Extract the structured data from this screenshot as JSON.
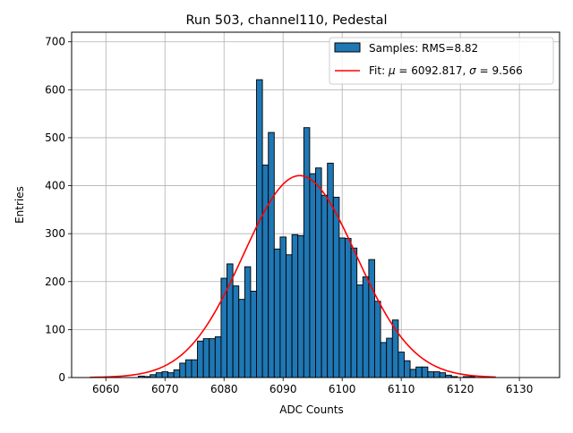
{
  "chart_data": {
    "type": "bar",
    "title": "Run 503, channel110, Pedestal",
    "xlabel": "ADC Counts",
    "ylabel": "Entries",
    "xlim": [
      6054.2,
      6136.8
    ],
    "ylim": [
      0,
      720
    ],
    "xticks": [
      6060,
      6070,
      6080,
      6090,
      6100,
      6110,
      6120,
      6130
    ],
    "yticks": [
      0,
      100,
      200,
      300,
      400,
      500,
      600,
      700
    ],
    "grid": true,
    "legend_position": "top-right",
    "bin_width": 1,
    "series": [
      {
        "name": "Samples: RMS=8.82",
        "kind": "histogram",
        "color": "#1f77b4",
        "edge_color": "#000000",
        "bins": [
          {
            "x": 6066,
            "v": 3
          },
          {
            "x": 6067,
            "v": 2
          },
          {
            "x": 6068,
            "v": 6
          },
          {
            "x": 6069,
            "v": 10
          },
          {
            "x": 6070,
            "v": 12
          },
          {
            "x": 6071,
            "v": 10
          },
          {
            "x": 6072,
            "v": 16
          },
          {
            "x": 6073,
            "v": 30
          },
          {
            "x": 6074,
            "v": 37
          },
          {
            "x": 6075,
            "v": 37
          },
          {
            "x": 6076,
            "v": 76
          },
          {
            "x": 6077,
            "v": 81
          },
          {
            "x": 6078,
            "v": 81
          },
          {
            "x": 6079,
            "v": 85
          },
          {
            "x": 6080,
            "v": 207
          },
          {
            "x": 6081,
            "v": 237
          },
          {
            "x": 6082,
            "v": 191
          },
          {
            "x": 6083,
            "v": 163
          },
          {
            "x": 6084,
            "v": 231
          },
          {
            "x": 6085,
            "v": 180
          },
          {
            "x": 6086,
            "v": 621
          },
          {
            "x": 6087,
            "v": 443
          },
          {
            "x": 6088,
            "v": 511
          },
          {
            "x": 6089,
            "v": 268
          },
          {
            "x": 6090,
            "v": 293
          },
          {
            "x": 6091,
            "v": 256
          },
          {
            "x": 6092,
            "v": 298
          },
          {
            "x": 6093,
            "v": 296
          },
          {
            "x": 6094,
            "v": 521
          },
          {
            "x": 6095,
            "v": 425
          },
          {
            "x": 6096,
            "v": 437
          },
          {
            "x": 6097,
            "v": 380
          },
          {
            "x": 6098,
            "v": 447
          },
          {
            "x": 6099,
            "v": 376
          },
          {
            "x": 6100,
            "v": 291
          },
          {
            "x": 6101,
            "v": 290
          },
          {
            "x": 6102,
            "v": 270
          },
          {
            "x": 6103,
            "v": 193
          },
          {
            "x": 6104,
            "v": 210
          },
          {
            "x": 6105,
            "v": 246
          },
          {
            "x": 6106,
            "v": 159
          },
          {
            "x": 6107,
            "v": 73
          },
          {
            "x": 6108,
            "v": 82
          },
          {
            "x": 6109,
            "v": 120
          },
          {
            "x": 6110,
            "v": 53
          },
          {
            "x": 6111,
            "v": 35
          },
          {
            "x": 6112,
            "v": 17
          },
          {
            "x": 6113,
            "v": 22
          },
          {
            "x": 6114,
            "v": 22
          },
          {
            "x": 6115,
            "v": 12
          },
          {
            "x": 6116,
            "v": 12
          },
          {
            "x": 6117,
            "v": 10
          },
          {
            "x": 6118,
            "v": 5
          },
          {
            "x": 6119,
            "v": 2
          },
          {
            "x": 6121,
            "v": 2
          },
          {
            "x": 6122,
            "v": 2
          }
        ]
      },
      {
        "name": "Fit: μ = 6092.817, σ = 9.566",
        "kind": "gaussian-fit",
        "color": "#ff0000",
        "mu": 6092.817,
        "sigma": 9.566,
        "amplitude": 421,
        "x_range": [
          6057.3,
          6126.0
        ]
      }
    ]
  },
  "legend": {
    "hist_label_prefix": "Samples: RMS=8.82",
    "fit_label_prefix": "Fit: ",
    "fit_mu_symbol": "μ",
    "fit_mu_value": " = 6092.817, ",
    "fit_sigma_symbol": "σ",
    "fit_sigma_value": " = 9.566"
  }
}
